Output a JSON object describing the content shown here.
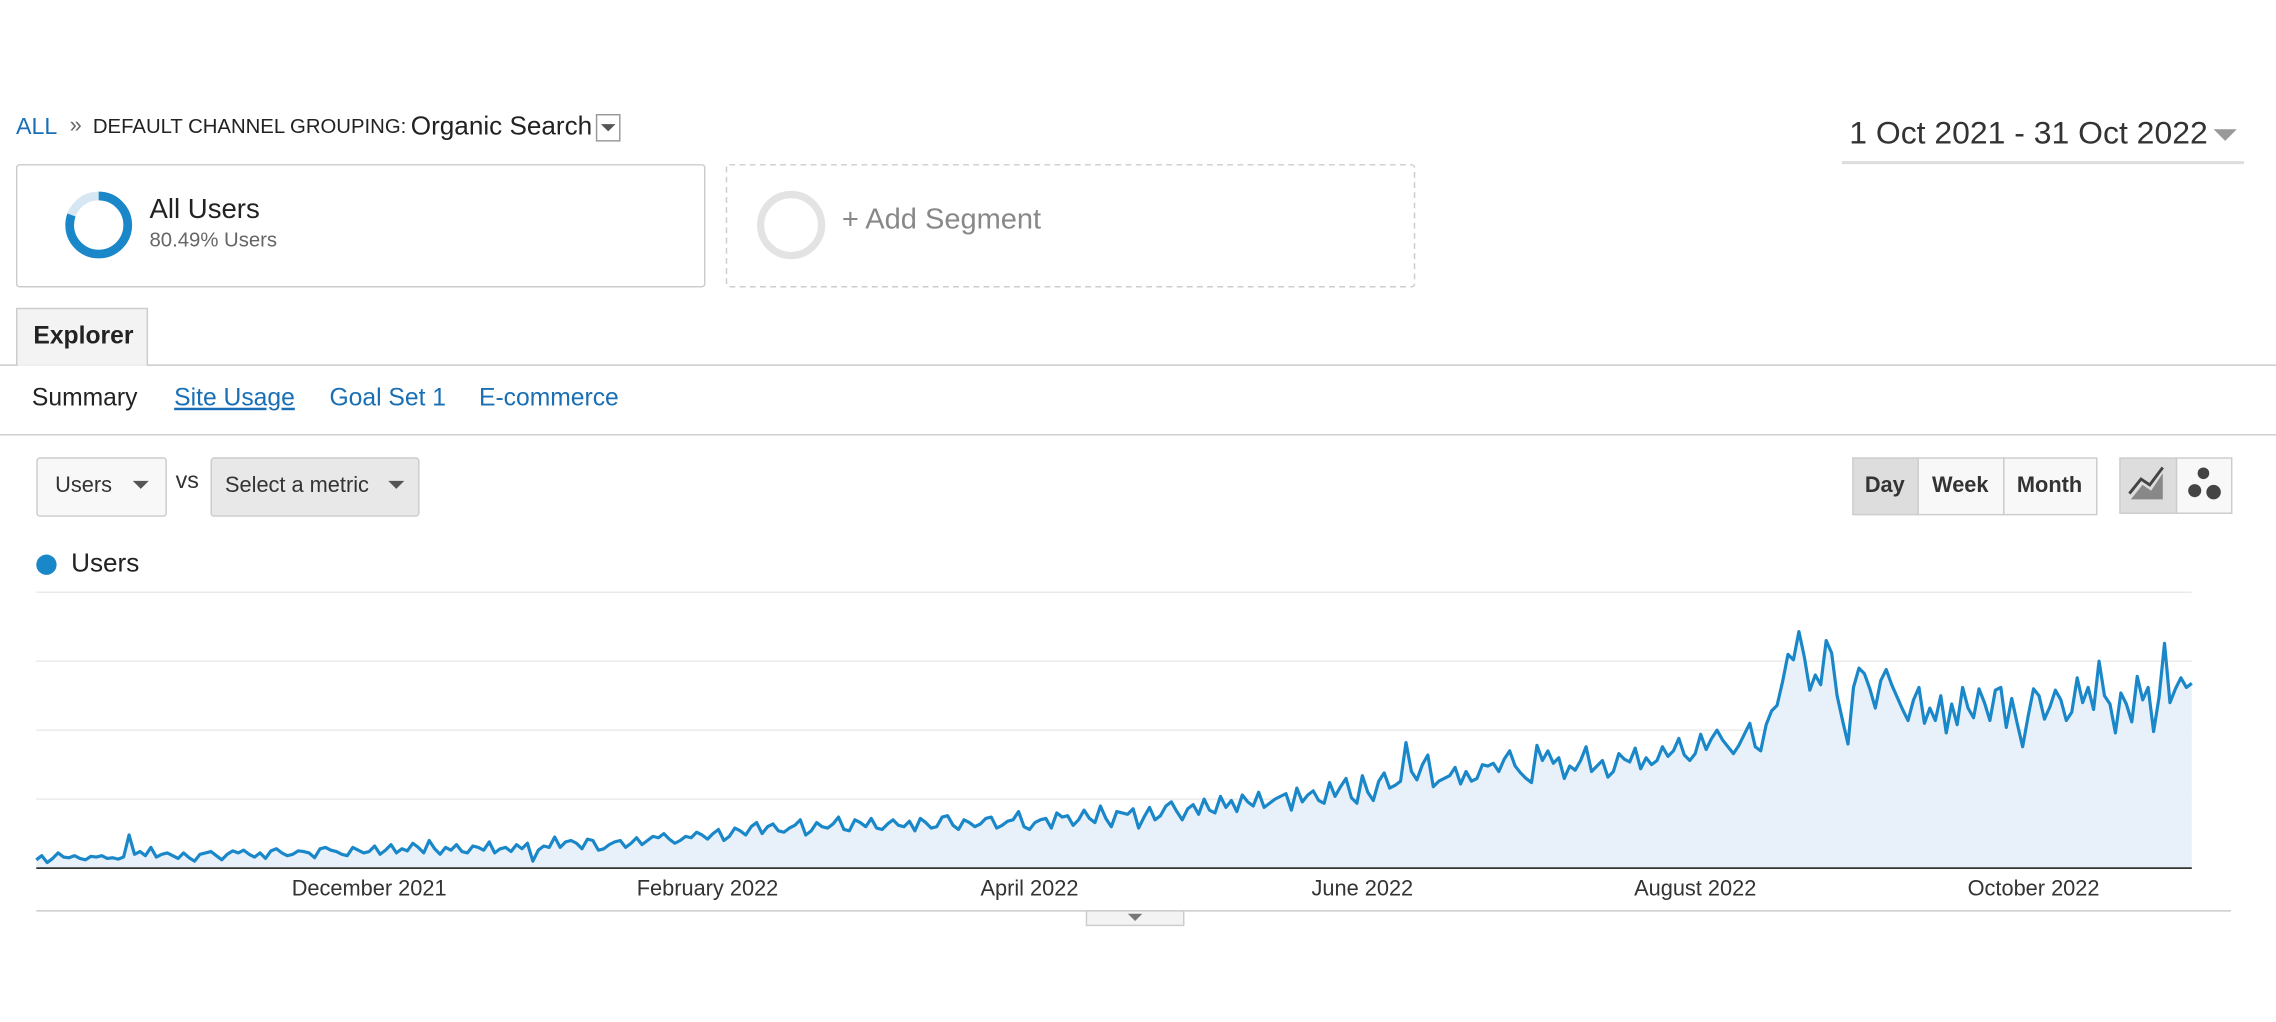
{
  "header": {
    "breadcrumb_root": "ALL",
    "separator": "»",
    "dimension_label": "DEFAULT CHANNEL GROUPING:",
    "dimension_value": "Organic Search",
    "date_range": "1 Oct 2021 - 31 Oct 2022"
  },
  "segments": [
    {
      "name": "All Users",
      "value": 80.49,
      "label": "80.49% Users"
    },
    {
      "name": "+ Add Segment"
    }
  ],
  "tabs": [
    "Explorer"
  ],
  "subtabs": [
    "Summary",
    "Site Usage",
    "Goal Set 1",
    "E-commerce"
  ],
  "controls": {
    "metric": "Users",
    "vs": "vs",
    "compare_metric": "Select a metric",
    "granularity": [
      "Day",
      "Week",
      "Month"
    ]
  },
  "chart_data": {
    "type": "line",
    "ylim": [
      0,
      400
    ],
    "grid": true,
    "categories": [
      null,
      null,
      null,
      null,
      null,
      null,
      null,
      null,
      null,
      null,
      null,
      null,
      null,
      null,
      null,
      null,
      null,
      null,
      null,
      null,
      null,
      null,
      null,
      null,
      null,
      null,
      null,
      null,
      null,
      null,
      null,
      null,
      null,
      null,
      null,
      null,
      null,
      null,
      null,
      null,
      null,
      null,
      null,
      null,
      null,
      null,
      null,
      null,
      null,
      null,
      null,
      null,
      null,
      null,
      null,
      null,
      null,
      null,
      null,
      null,
      null,
      "December 2021",
      null,
      null,
      null,
      null,
      null,
      null,
      null,
      null,
      null,
      null,
      null,
      null,
      null,
      null,
      null,
      null,
      null,
      null,
      null,
      null,
      null,
      null,
      null,
      null,
      null,
      null,
      null,
      null,
      null,
      null,
      null,
      null,
      null,
      null,
      null,
      null,
      null,
      null,
      null,
      null,
      null,
      null,
      null,
      null,
      null,
      null,
      null,
      null,
      null,
      null,
      null,
      null,
      null,
      null,
      null,
      null,
      null,
      null,
      null,
      null,
      null,
      "February 2022",
      null,
      null,
      null,
      null,
      null,
      null,
      null,
      null,
      null,
      null,
      null,
      null,
      null,
      null,
      null,
      null,
      null,
      null,
      null,
      null,
      null,
      null,
      null,
      null,
      null,
      null,
      null,
      null,
      null,
      null,
      null,
      null,
      null,
      null,
      null,
      null,
      null,
      null,
      null,
      null,
      null,
      null,
      null,
      null,
      null,
      null,
      null,
      null,
      null,
      null,
      null,
      null,
      null,
      null,
      null,
      null,
      null,
      null,
      "April 2022",
      null,
      null,
      null,
      null,
      null,
      null,
      null,
      null,
      null,
      null,
      null,
      null,
      null,
      null,
      null,
      null,
      null,
      null,
      null,
      null,
      null,
      null,
      null,
      null,
      null,
      null,
      null,
      null,
      null,
      null,
      null,
      null,
      null,
      null,
      null,
      null,
      null,
      null,
      null,
      null,
      null,
      null,
      null,
      null,
      null,
      null,
      null,
      null,
      null,
      null,
      null,
      null,
      null,
      null,
      null,
      null,
      null,
      null,
      null,
      null,
      "June 2022",
      null,
      null,
      null,
      null,
      null,
      null,
      null,
      null,
      null,
      null,
      null,
      null,
      null,
      null,
      null,
      null,
      null,
      null,
      null,
      null,
      null,
      null,
      null,
      null,
      null,
      null,
      null,
      null,
      null,
      null,
      null,
      null,
      null,
      null,
      null,
      null,
      null,
      null,
      null,
      null,
      null,
      null,
      null,
      null,
      null,
      null,
      null,
      null,
      null,
      null,
      null,
      null,
      null,
      null,
      null,
      null,
      null,
      null,
      null,
      null,
      "August 2022",
      null,
      null,
      null,
      null,
      null,
      null,
      null,
      null,
      null,
      null,
      null,
      null,
      null,
      null,
      null,
      null,
      null,
      null,
      null,
      null,
      null,
      null,
      null,
      null,
      null,
      null,
      null,
      null,
      null,
      null,
      null,
      null,
      null,
      null,
      null,
      null,
      null,
      null,
      null,
      null,
      null,
      null,
      null,
      null,
      null,
      null,
      null,
      null,
      null,
      null,
      null,
      null,
      null,
      null,
      null,
      null,
      null,
      null,
      null,
      null,
      null,
      "October 2022",
      null,
      null,
      null,
      null,
      null,
      null,
      null,
      null,
      null,
      null,
      null,
      null,
      null,
      null,
      null,
      null,
      null,
      null,
      null,
      null,
      null,
      null,
      null,
      null,
      null,
      null,
      null,
      null,
      null
    ],
    "series": [
      {
        "name": "Users",
        "color": "#1a87c9",
        "values": [
          12,
          18,
          8,
          14,
          22,
          16,
          15,
          18,
          14,
          12,
          17,
          16,
          18,
          14,
          15,
          13,
          16,
          48,
          20,
          24,
          18,
          30,
          16,
          20,
          22,
          18,
          14,
          22,
          15,
          10,
          20,
          22,
          24,
          18,
          12,
          20,
          25,
          22,
          26,
          20,
          16,
          22,
          14,
          25,
          28,
          22,
          18,
          20,
          25,
          24,
          22,
          15,
          28,
          30,
          26,
          24,
          20,
          18,
          30,
          26,
          22,
          24,
          32,
          20,
          26,
          34,
          22,
          28,
          25,
          36,
          30,
          22,
          40,
          28,
          20,
          30,
          26,
          34,
          24,
          22,
          32,
          30,
          26,
          38,
          22,
          28,
          30,
          24,
          34,
          28,
          36,
          10,
          26,
          32,
          30,
          45,
          30,
          38,
          40,
          36,
          28,
          42,
          40,
          26,
          28,
          34,
          38,
          40,
          30,
          36,
          44,
          34,
          40,
          46,
          44,
          50,
          42,
          36,
          40,
          46,
          44,
          52,
          48,
          42,
          50,
          56,
          40,
          46,
          58,
          54,
          48,
          60,
          66,
          50,
          60,
          64,
          54,
          52,
          58,
          62,
          70,
          48,
          54,
          66,
          60,
          58,
          64,
          74,
          56,
          54,
          70,
          66,
          60,
          72,
          58,
          56,
          64,
          70,
          62,
          60,
          68,
          54,
          72,
          66,
          58,
          60,
          74,
          76,
          62,
          56,
          70,
          66,
          60,
          64,
          72,
          74,
          58,
          62,
          68,
          70,
          82,
          60,
          56,
          66,
          70,
          72,
          58,
          80,
          74,
          76,
          62,
          70,
          84,
          72,
          66,
          90,
          72,
          60,
          82,
          80,
          78,
          86,
          58,
          74,
          88,
          70,
          76,
          90,
          96,
          82,
          70,
          86,
          92,
          78,
          100,
          84,
          80,
          104,
          88,
          98,
          82,
          106,
          96,
          90,
          110,
          88,
          94,
          100,
          104,
          108,
          84,
          116,
          96,
          106,
          112,
          98,
          94,
          124,
          104,
          118,
          130,
          102,
          94,
          134,
          110,
          98,
          126,
          138,
          116,
          120,
          126,
          182,
          140,
          128,
          150,
          164,
          118,
          126,
          130,
          134,
          146,
          122,
          140,
          126,
          130,
          150,
          148,
          152,
          140,
          158,
          170,
          148,
          138,
          130,
          124,
          178,
          156,
          170,
          152,
          160,
          130,
          148,
          142,
          156,
          176,
          140,
          148,
          156,
          132,
          140,
          166,
          158,
          154,
          174,
          144,
          160,
          150,
          156,
          176,
          162,
          170,
          188,
          164,
          156,
          166,
          194,
          172,
          188,
          200,
          186,
          176,
          166,
          178,
          194,
          210,
          176,
          170,
          208,
          228,
          236,
          270,
          310,
          302,
          343,
          306,
          258,
          280,
          266,
          330,
          312,
          250,
          214,
          180,
          262,
          290,
          282,
          260,
          232,
          272,
          288,
          266,
          248,
          230,
          214,
          244,
          262,
          210,
          232,
          214,
          250,
          196,
          238,
          208,
          262,
          232,
          218,
          260,
          240,
          214,
          258,
          262,
          204,
          246,
          210,
          176,
          220,
          260,
          250,
          216,
          234,
          258,
          244,
          214,
          226,
          276,
          240,
          262,
          230,
          300,
          250,
          238,
          196,
          254,
          238,
          212,
          278,
          244,
          262,
          198,
          248,
          326,
          240,
          260,
          276,
          262,
          268
        ]
      }
    ]
  }
}
